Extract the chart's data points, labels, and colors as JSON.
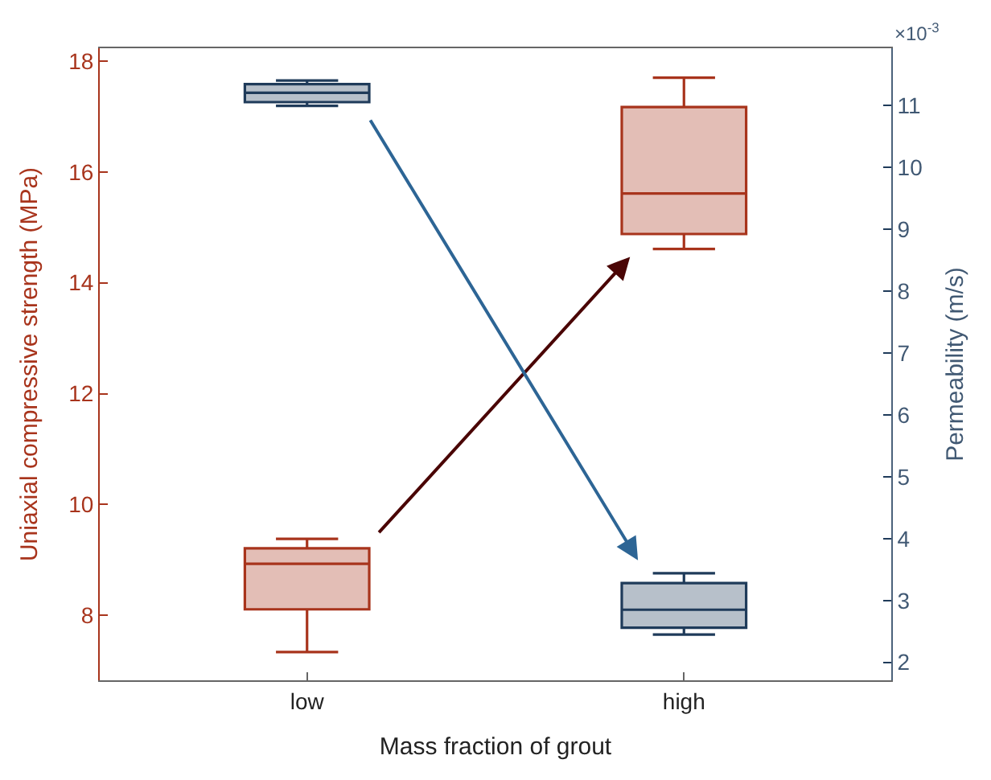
{
  "chart_data": {
    "type": "box",
    "xlabel": "Mass fraction of grout",
    "ylabel": "Uniaxial compressive strength (MPa)",
    "y2label": "Permeability (m/s)",
    "categories": [
      "low",
      "high"
    ],
    "series": [
      {
        "color": "#a8341c",
        "boxes": [
          {
            "low": 7.34,
            "q1": 8.11,
            "median": 8.93,
            "q3": 9.21,
            "high": 9.38
          },
          {
            "low": 14.61,
            "q1": 14.88,
            "median": 15.61,
            "q3": 17.17,
            "high": 17.7
          }
        ]
      },
      {
        "color": "#1f3b5a",
        "axis": "y2",
        "boxes": [
          {
            "low": 10.99,
            "q1": 11.05,
            "median": 11.2,
            "q3": 11.34,
            "high": 11.4
          },
          {
            "low": 2.45,
            "q1": 2.56,
            "median": 2.85,
            "q3": 3.28,
            "high": 3.44
          }
        ]
      }
    ],
    "ylim": [
      6.83,
      18.23
    ],
    "yticks": [
      8,
      10,
      12,
      14,
      16,
      18
    ],
    "y2lim": [
      1.71,
      11.92
    ],
    "y2ticks": [
      2,
      3,
      4,
      5,
      6,
      7,
      8,
      9,
      10,
      11
    ],
    "annotations": [
      "×10$^{-3}$"
    ]
  }
}
